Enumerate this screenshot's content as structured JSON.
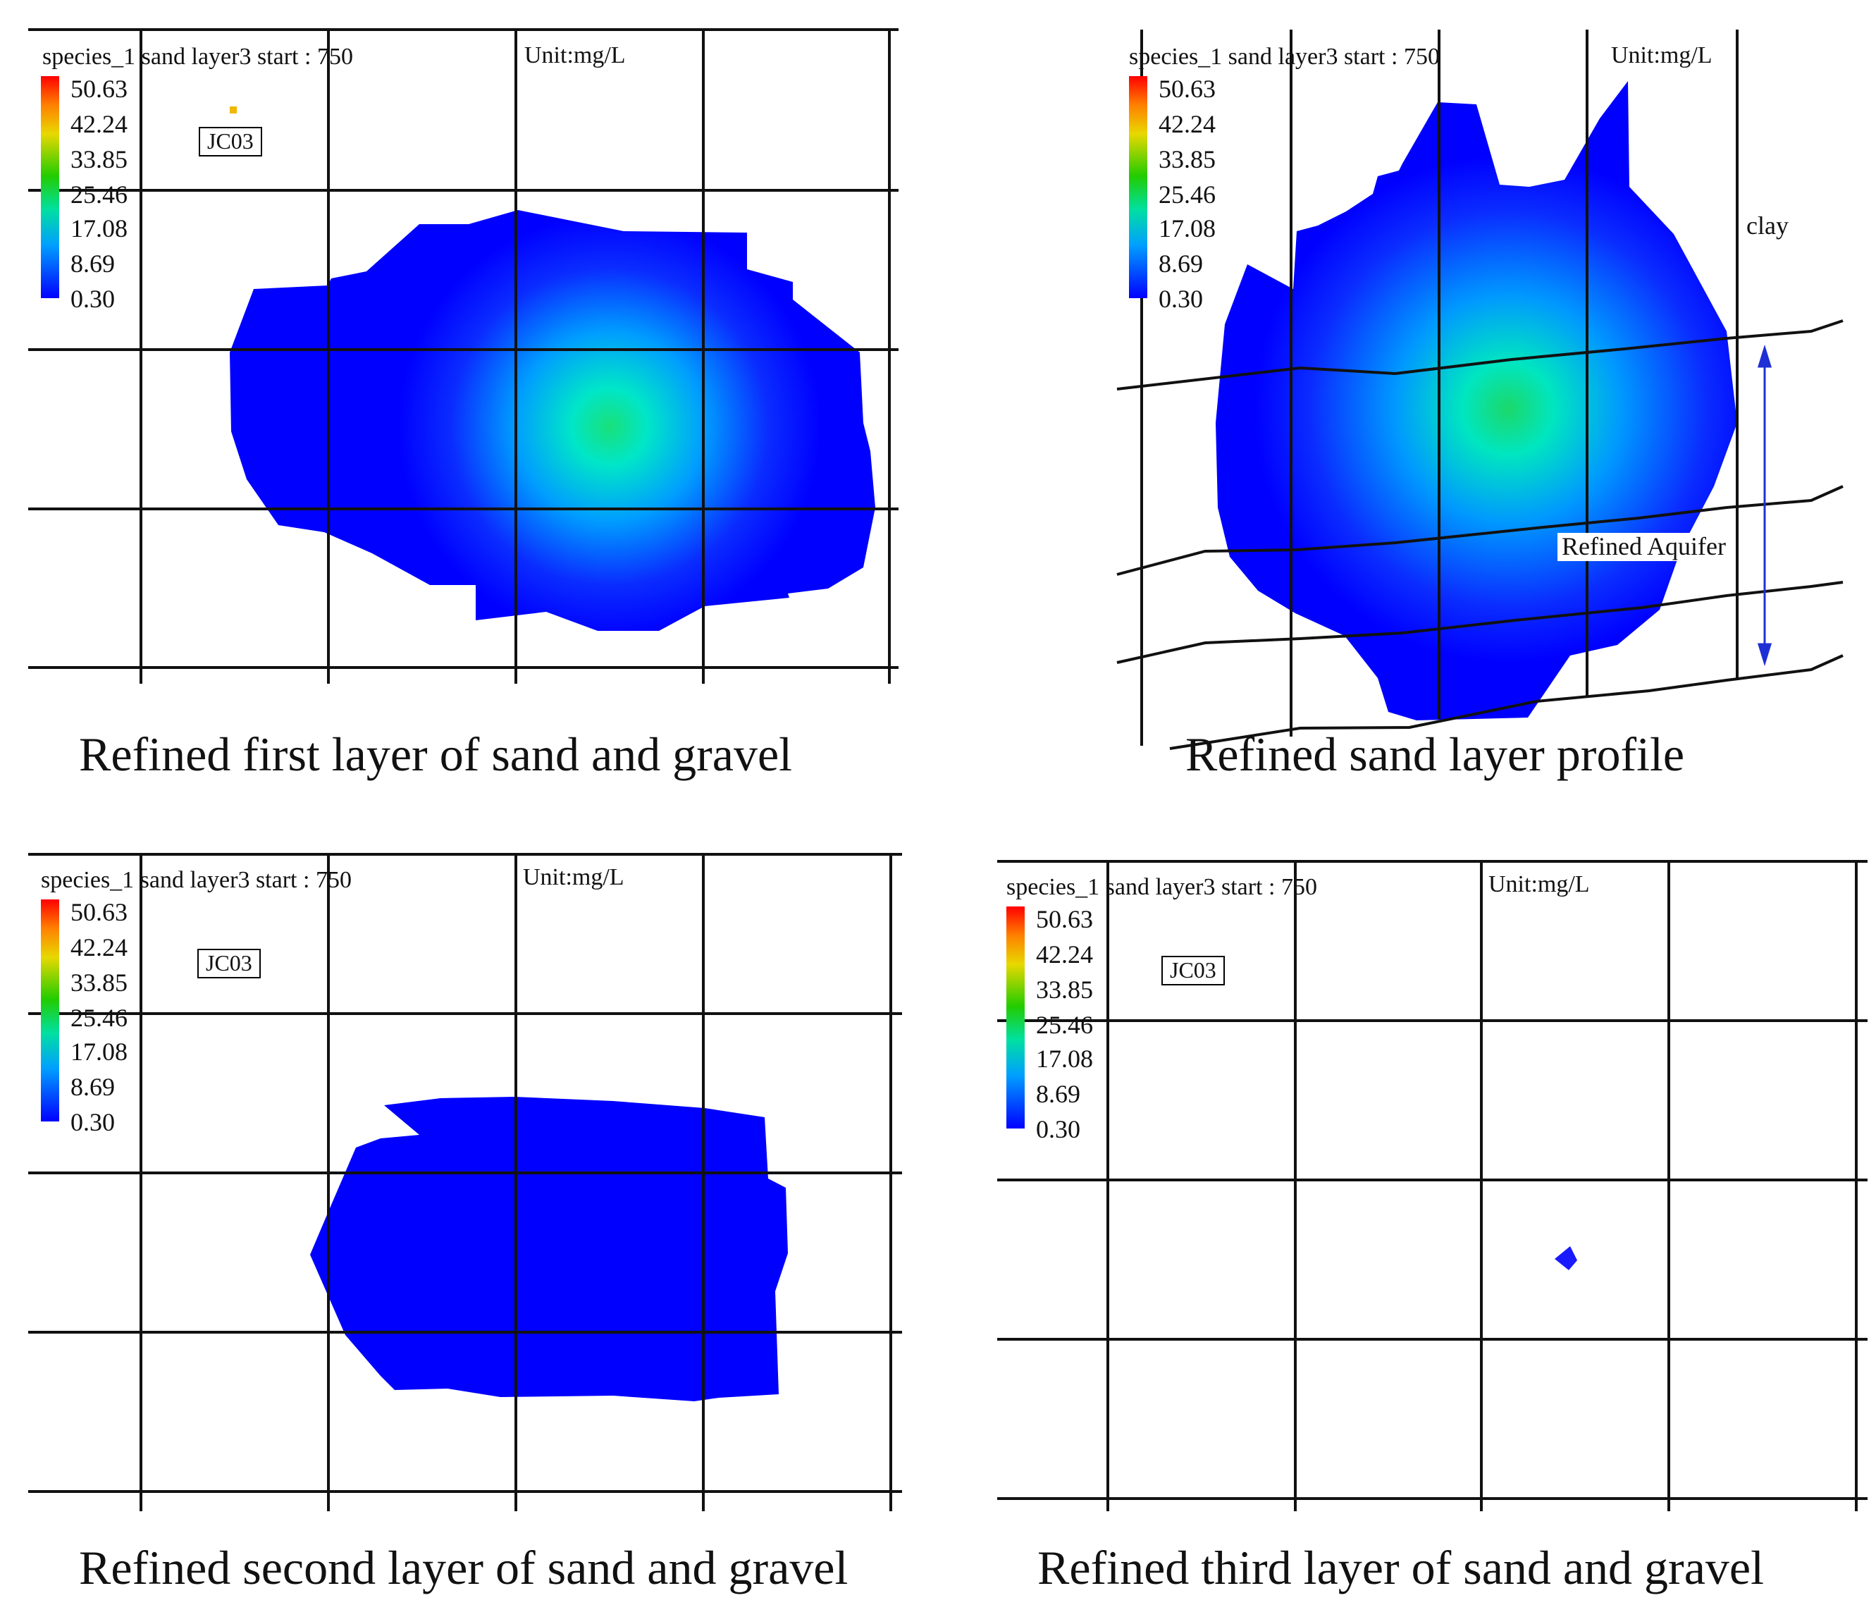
{
  "header_text": "species_1 sand layer3 start : 750",
  "unit_text": "Unit:mg/L",
  "well_label": "JC03",
  "legend": {
    "ticks": [
      "50.63",
      "42.24",
      "33.85",
      "25.46",
      "17.08",
      "8.69",
      "0.30"
    ],
    "colors": [
      "#ff0000",
      "#ff8000",
      "#e8d800",
      "#22cc00",
      "#00e0a0",
      "#00a0ff",
      "#0000ff"
    ]
  },
  "panels": {
    "first": {
      "caption": "Refined first layer of sand and gravel"
    },
    "profile": {
      "caption": "Refined sand layer profile",
      "clay_label": "clay",
      "aquifer_label": "Refined Aquifer"
    },
    "second": {
      "caption": "Refined second layer of sand and gravel"
    },
    "third": {
      "caption": "Refined third layer of sand and gravel"
    }
  }
}
